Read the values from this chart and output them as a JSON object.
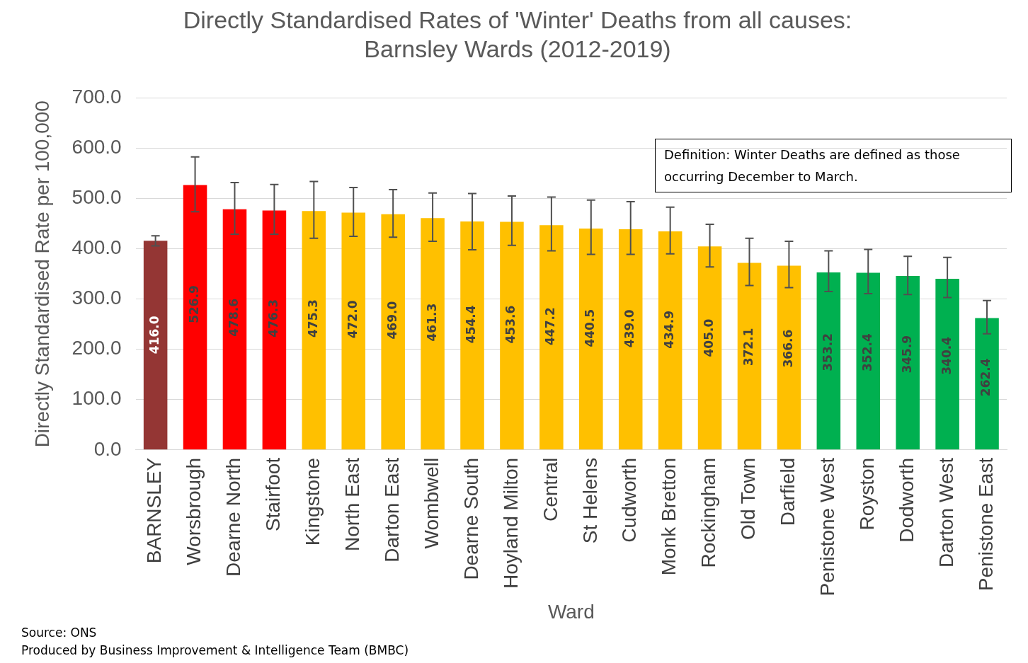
{
  "chart_data": {
    "type": "bar",
    "title": "Directly Standardised Rates of 'Winter' Deaths from all causes: Barnsley Wards (2012-2019)",
    "xlabel": "Ward",
    "ylabel": "Directly Standardised Rate per 100,000",
    "categories": [
      "BARNSLEY",
      "Worsbrough",
      "Dearne North",
      "Stairfoot",
      "Kingstone",
      "North East",
      "Darton East",
      "Wombwell",
      "Dearne South",
      "Hoyland Milton",
      "Central",
      "St Helens",
      "Cudworth",
      "Monk Bretton",
      "Rockingham",
      "Old Town",
      "Darfield",
      "Penistone West",
      "Royston",
      "Dodworth",
      "Darton West",
      "Penistone East"
    ],
    "values": [
      416.0,
      526.9,
      478.6,
      476.3,
      475.3,
      472.0,
      469.0,
      461.3,
      454.4,
      453.6,
      447.2,
      440.5,
      439.0,
      434.9,
      405.0,
      372.1,
      366.6,
      353.2,
      352.4,
      345.9,
      340.4,
      262.4
    ],
    "colors": [
      "#943634",
      "#ff0000",
      "#ff0000",
      "#ff0000",
      "#ffc000",
      "#ffc000",
      "#ffc000",
      "#ffc000",
      "#ffc000",
      "#ffc000",
      "#ffc000",
      "#ffc000",
      "#ffc000",
      "#ffc000",
      "#ffc000",
      "#ffc000",
      "#ffc000",
      "#00b050",
      "#00b050",
      "#00b050",
      "#00b050",
      "#00b050"
    ],
    "errors": [
      [
        406,
        426
      ],
      [
        474,
        583
      ],
      [
        429,
        532
      ],
      [
        429,
        528
      ],
      [
        421,
        534
      ],
      [
        425,
        522
      ],
      [
        423,
        518
      ],
      [
        415,
        511
      ],
      [
        398,
        510
      ],
      [
        407,
        505
      ],
      [
        396,
        503
      ],
      [
        389,
        497
      ],
      [
        389,
        494
      ],
      [
        390,
        483
      ],
      [
        364,
        449
      ],
      [
        327,
        421
      ],
      [
        323,
        415
      ],
      [
        315,
        396
      ],
      [
        311,
        399
      ],
      [
        309,
        385
      ],
      [
        303,
        383
      ],
      [
        231,
        297
      ]
    ],
    "value_labels": [
      "416.0",
      "526.9",
      "478.6",
      "476.3",
      "475.3",
      "472.0",
      "469.0",
      "461.3",
      "454.4",
      "453.6",
      "447.2",
      "440.5",
      "439.0",
      "434.9",
      "405.0",
      "372.1",
      "366.6",
      "353.2",
      "352.4",
      "345.9",
      "340.4",
      "262.4"
    ],
    "ylim": [
      0,
      700
    ],
    "yticks": [
      {
        "value": 0,
        "label": "0.0"
      },
      {
        "value": 100,
        "label": "100.0"
      },
      {
        "value": 200,
        "label": "200.0"
      },
      {
        "value": 300,
        "label": "300.0"
      },
      {
        "value": 400,
        "label": "400.0"
      },
      {
        "value": 500,
        "label": "500.0"
      },
      {
        "value": 600,
        "label": "600.0"
      },
      {
        "value": 700,
        "label": "700.0"
      }
    ],
    "grid": "y",
    "legend": false,
    "annotations": [
      "Definition: Winter Deaths are defined as those occurring December to March.",
      "Source: ONS",
      "Produced by Business Improvement & Intelligence Team (BMBC)"
    ]
  }
}
